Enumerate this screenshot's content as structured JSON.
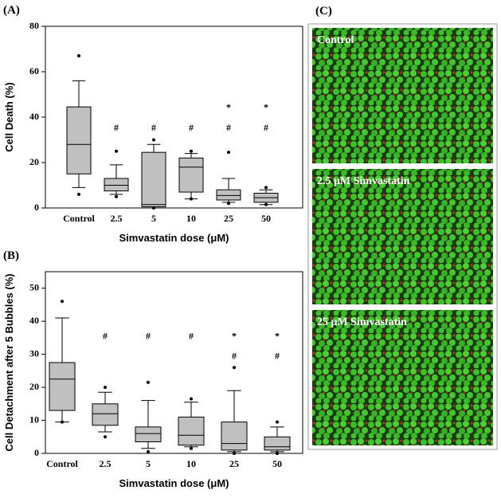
{
  "chart_data": [
    {
      "type": "box",
      "panel_label": "(A)",
      "xlabel": "Simvastatin dose (μM)",
      "ylabel": "Cell Death (%)",
      "categories": [
        "Control",
        "2.5",
        "5",
        "10",
        "25",
        "50"
      ],
      "color": "#c0c0c0",
      "ylim": [
        0,
        80
      ],
      "yticks": [
        0,
        20,
        40,
        60,
        80
      ],
      "whislo": [
        9,
        6,
        0,
        4,
        2.5,
        1.5
      ],
      "q1": [
        15,
        7.5,
        0.5,
        7,
        3.5,
        2.5
      ],
      "med": [
        28,
        10,
        1.5,
        18,
        5.5,
        4.5
      ],
      "q3": [
        44.5,
        13,
        24.5,
        22,
        8,
        6.5
      ],
      "whishi": [
        56,
        19,
        28,
        24,
        13,
        8
      ],
      "fliers": [
        [
          67,
          6
        ],
        [
          25,
          5
        ],
        [
          30,
          0
        ],
        [
          25,
          4
        ],
        [
          24.5,
          2
        ],
        [
          9,
          1.5
        ]
      ],
      "annotations": [
        {
          "text": "#",
          "values": [
            null,
            35,
            35,
            35,
            35,
            35
          ]
        },
        {
          "text": "*",
          "values": [
            null,
            null,
            null,
            null,
            44,
            44
          ]
        }
      ]
    },
    {
      "type": "box",
      "panel_label": "(B)",
      "xlabel": "Simvastatin dose (μM)",
      "ylabel": "Cell Detachment after 5 Bubbles (%)",
      "categories": [
        "Control",
        "2.5",
        "5",
        "10",
        "25",
        "50"
      ],
      "color": "#c0c0c0",
      "ylim": [
        0,
        55
      ],
      "yticks": [
        0,
        10,
        20,
        30,
        40,
        50
      ],
      "whislo": [
        9.5,
        6.5,
        1.5,
        2,
        0.5,
        0.5
      ],
      "q1": [
        13,
        8.5,
        3.5,
        2.5,
        1,
        1
      ],
      "med": [
        22.5,
        12,
        6,
        5.5,
        3,
        2
      ],
      "q3": [
        27.5,
        15,
        8,
        11,
        9.5,
        5
      ],
      "whishi": [
        41,
        18.5,
        16,
        15.5,
        19,
        8
      ],
      "fliers": [
        [
          46,
          9.5
        ],
        [
          20,
          5
        ],
        [
          21.5,
          0.5
        ],
        [
          16.5,
          1.5
        ],
        [
          26,
          0
        ],
        [
          9.5,
          0
        ]
      ],
      "annotations": [
        {
          "text": "#",
          "values": [
            null,
            35.3,
            35.3,
            35.3,
            29.2,
            29.2
          ]
        },
        {
          "text": "*",
          "values": [
            null,
            null,
            null,
            null,
            35.3,
            35.3
          ]
        }
      ]
    }
  ],
  "figure_c": {
    "panel_label": "(C)",
    "images": [
      {
        "label": "Control"
      },
      {
        "label": "2.5 μM Simvastatin"
      },
      {
        "label": "25 μM Simvastatin"
      }
    ]
  }
}
